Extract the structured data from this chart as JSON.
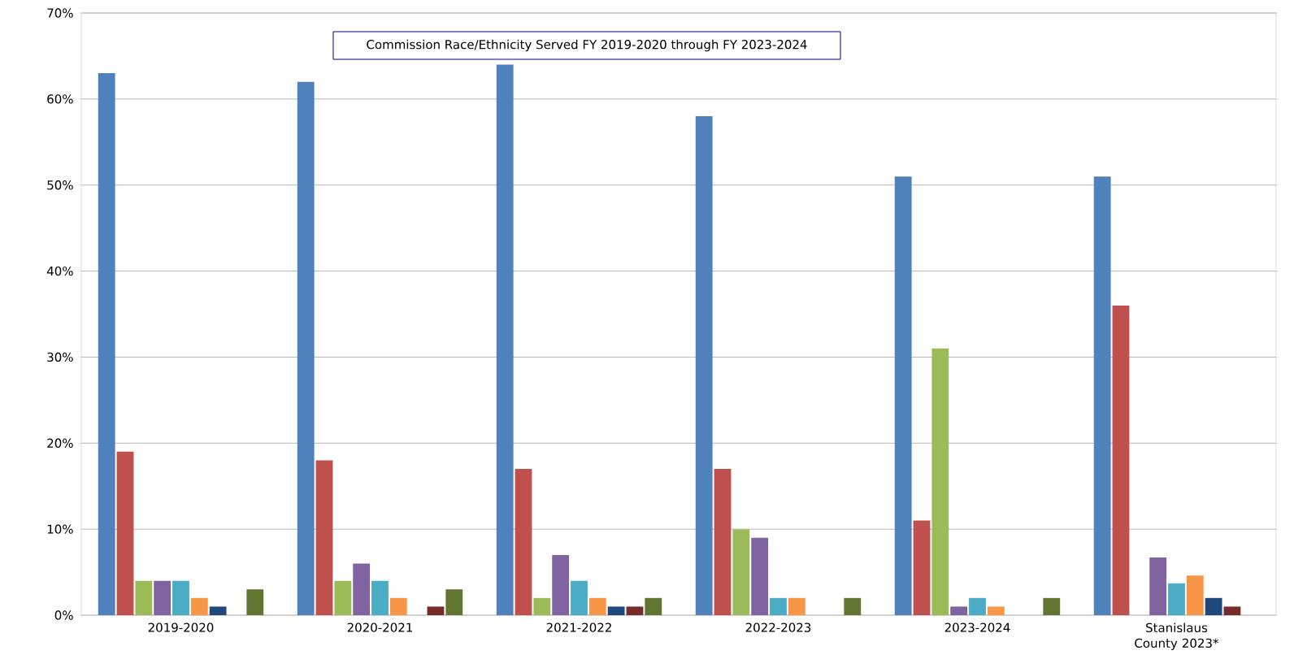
{
  "chart_data": {
    "type": "bar",
    "title": "Commission Race/Ethnicity Served FY 2019-2020 through FY 2023-2024",
    "categories": [
      "2019-2020",
      "2020-2021",
      "2021-2022",
      "2022-2023",
      "2023-2024",
      "Stanislaus County 2023*"
    ],
    "series": [
      {
        "color": "#4f81bd",
        "values": [
          63,
          62,
          64,
          58,
          51,
          51
        ]
      },
      {
        "color": "#c0504d",
        "values": [
          19,
          18,
          17,
          17,
          11,
          36
        ]
      },
      {
        "color": "#9bbb59",
        "values": [
          4,
          4,
          2,
          10,
          31,
          0
        ]
      },
      {
        "color": "#8064a2",
        "values": [
          4,
          6,
          7,
          9,
          1,
          6.7
        ]
      },
      {
        "color": "#4bacc6",
        "values": [
          4,
          4,
          4,
          2,
          2,
          3.7
        ]
      },
      {
        "color": "#f79646",
        "values": [
          2,
          2,
          2,
          2,
          1,
          4.6
        ]
      },
      {
        "color": "#1f497d",
        "values": [
          1,
          0,
          1,
          0,
          0,
          2
        ]
      },
      {
        "color": "#772c2a",
        "values": [
          0,
          1,
          1,
          0,
          0,
          1
        ]
      },
      {
        "color": "#5f7530",
        "values": [
          3,
          3,
          2,
          2,
          2,
          0
        ]
      }
    ],
    "ylim": [
      0,
      70
    ],
    "yticks": [
      {
        "value": 0,
        "label": "0%"
      },
      {
        "value": 10,
        "label": "10%"
      },
      {
        "value": 20,
        "label": "20%"
      },
      {
        "value": 30,
        "label": "30%"
      },
      {
        "value": 40,
        "label": "40%"
      },
      {
        "value": 50,
        "label": "50%"
      },
      {
        "value": 60,
        "label": "60%"
      },
      {
        "value": 70,
        "label": "70%"
      }
    ],
    "grid": "y"
  }
}
